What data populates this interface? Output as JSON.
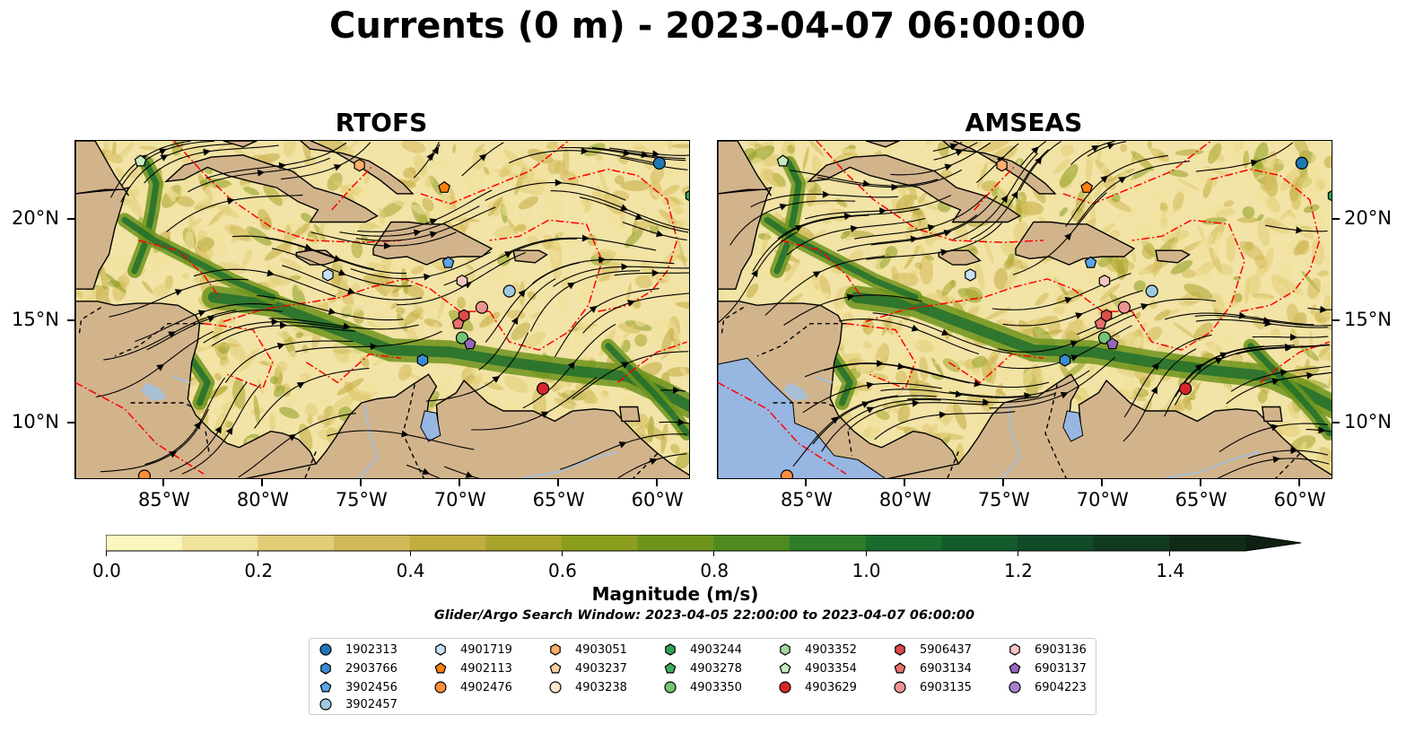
{
  "title": "Currents (0 m) - 2023-04-07 06:00:00",
  "panels": [
    {
      "title": "RTOFS"
    },
    {
      "title": "AMSEAS"
    }
  ],
  "axes": {
    "lon_ticks": [
      "85°W",
      "80°W",
      "75°W",
      "70°W",
      "65°W",
      "60°W"
    ],
    "lat_ticks": [
      "20°N",
      "15°N",
      "10°N"
    ],
    "lon_range": [
      -89.5,
      -58.3
    ],
    "lat_range": [
      7.2,
      23.9
    ]
  },
  "colorbar": {
    "label": "Magnitude (m/s)",
    "ticks": [
      "0.0",
      "0.2",
      "0.4",
      "0.6",
      "0.8",
      "1.0",
      "1.2",
      "1.4"
    ],
    "range": [
      0.0,
      1.5
    ],
    "extend": "max",
    "colors": [
      "#fbf6c0",
      "#f0e29b",
      "#e1cd76",
      "#d2b957",
      "#c1ac3f",
      "#a7a42b",
      "#8c9e1e",
      "#6e941c",
      "#4e8a20",
      "#2f7d28",
      "#1a6b2e",
      "#135a2c",
      "#114a27",
      "#123a20",
      "#112b19",
      "#0f1f12"
    ]
  },
  "search_window": "Glider/Argo Search Window: 2023-04-05 22:00:00 to 2023-04-07 06:00:00",
  "legend": [
    {
      "id": "1902313",
      "marker": "circle",
      "color": "#1f77b4"
    },
    {
      "id": "2903766",
      "marker": "hexagon",
      "color": "#3b8bd4"
    },
    {
      "id": "3902456",
      "marker": "pentagon",
      "color": "#5aa5e6"
    },
    {
      "id": "3902457",
      "marker": "circle",
      "color": "#9ecae1"
    },
    {
      "id": "4901719",
      "marker": "hexagon",
      "color": "#c6e2f7"
    },
    {
      "id": "4902113",
      "marker": "pentagon",
      "color": "#ff7f0e"
    },
    {
      "id": "4902476",
      "marker": "circle",
      "color": "#fd8d3c"
    },
    {
      "id": "4903051",
      "marker": "hexagon",
      "color": "#fdae6b"
    },
    {
      "id": "4903237",
      "marker": "pentagon",
      "color": "#fdd0a2"
    },
    {
      "id": "4903238",
      "marker": "circle",
      "color": "#fee6ce"
    },
    {
      "id": "4903244",
      "marker": "hexagon",
      "color": "#31a354"
    },
    {
      "id": "4903278",
      "marker": "pentagon",
      "color": "#41ab5d"
    },
    {
      "id": "4903350",
      "marker": "circle",
      "color": "#74c476"
    },
    {
      "id": "4903352",
      "marker": "hexagon",
      "color": "#a1d99b"
    },
    {
      "id": "4903354",
      "marker": "pentagon",
      "color": "#c7e9c0"
    },
    {
      "id": "4903629",
      "marker": "circle",
      "color": "#d62728"
    },
    {
      "id": "5906437",
      "marker": "hexagon",
      "color": "#de4b4b"
    },
    {
      "id": "6903134",
      "marker": "pentagon",
      "color": "#e8706e"
    },
    {
      "id": "6903135",
      "marker": "circle",
      "color": "#f09493"
    },
    {
      "id": "6903136",
      "marker": "hexagon",
      "color": "#f7c4c3"
    },
    {
      "id": "6903137",
      "marker": "pentagon",
      "color": "#9467bd"
    },
    {
      "id": "6904223",
      "marker": "circle",
      "color": "#a97fd1"
    }
  ],
  "floats": [
    {
      "id": "1902313",
      "lon": -59.9,
      "lat": 22.8
    },
    {
      "id": "4903244",
      "lon": -58.3,
      "lat": 21.2
    },
    {
      "id": "4903354",
      "lon": -86.2,
      "lat": 22.9
    },
    {
      "id": "4903051",
      "lon": -75.1,
      "lat": 22.7
    },
    {
      "id": "4902113",
      "lon": -70.8,
      "lat": 21.6
    },
    {
      "id": "4901719",
      "lon": -76.7,
      "lat": 17.3
    },
    {
      "id": "3902456",
      "lon": -70.6,
      "lat": 17.9
    },
    {
      "id": "6903136",
      "lon": -69.9,
      "lat": 17.0
    },
    {
      "id": "3902457",
      "lon": -67.5,
      "lat": 16.5
    },
    {
      "id": "6903135",
      "lon": -68.9,
      "lat": 15.7
    },
    {
      "id": "5906437",
      "lon": -69.8,
      "lat": 15.3
    },
    {
      "id": "6903134",
      "lon": -70.1,
      "lat": 14.9
    },
    {
      "id": "4903350",
      "lon": -69.9,
      "lat": 14.2
    },
    {
      "id": "6903137",
      "lon": -69.5,
      "lat": 13.9
    },
    {
      "id": "2903766",
      "lon": -71.9,
      "lat": 13.1
    },
    {
      "id": "4903629",
      "lon": -65.8,
      "lat": 11.7
    },
    {
      "id": "4902476",
      "lon": -86.0,
      "lat": 7.4
    }
  ],
  "colors": {
    "land": "#d2b48c",
    "pacific_water": "#97b6e1",
    "eez_lines": "#ff0000",
    "streamlines": "#000000",
    "rivers": "#a8bfd6"
  }
}
